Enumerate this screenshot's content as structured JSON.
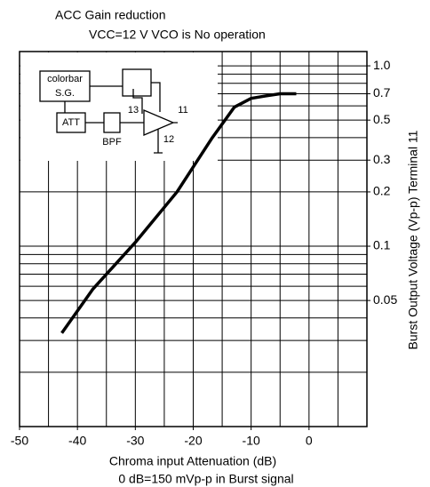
{
  "chart_data": {
    "type": "line",
    "title": "ACC Gain reduction",
    "subtitle": "VCC=12 V VCO is No operation",
    "x_label": "Chroma input Attenuation (dB)",
    "note": "0 dB=150 mVp-p in Burst signal",
    "y_label": "Burst Output Voltage (Vp-p)  Terminal 11",
    "inset_labels": [
      "colorbar",
      "S.G.",
      "ATT",
      "BPF",
      "13",
      "11",
      "12"
    ],
    "x": [
      -42.7,
      -37.3,
      -30,
      -22.8,
      -16.7,
      -12.9,
      -10,
      -7.6,
      -5,
      -2.2
    ],
    "series": [
      {
        "color": "#000000",
        "values": [
          0.033,
          0.058,
          0.105,
          0.2,
          0.4,
          0.59,
          0.66,
          0.68,
          0.7,
          0.7
        ]
      }
    ],
    "xlim": [
      -50,
      10
    ],
    "xticks": [
      -50,
      -40,
      -30,
      -20,
      -10,
      0
    ],
    "xgrid": [
      -45,
      -40,
      -35,
      -30,
      -25,
      -20,
      -15,
      -10,
      -5,
      0,
      5
    ],
    "ylim": [
      0.01,
      1.2
    ],
    "log_y": true,
    "yticks": [
      {
        "value": 1,
        "label": "1.0"
      },
      0.7,
      0.5,
      0.3,
      0.2,
      0.1,
      0.05
    ],
    "ygrid": [
      0.02,
      0.03,
      0.04,
      0.05,
      0.06,
      0.07,
      0.08,
      0.09,
      0.1,
      0.2,
      0.3,
      0.4,
      0.5,
      0.6,
      0.7,
      0.8,
      0.9,
      1
    ],
    "grid": true
  }
}
